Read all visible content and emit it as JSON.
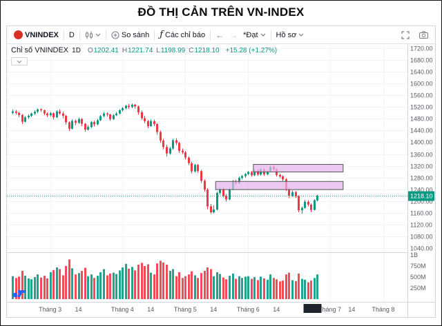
{
  "title": "ĐỒ THỊ CẢN TRÊN VN-INDEX",
  "toolbar": {
    "symbol": "VNINDEX",
    "interval": "D",
    "compare_label": "So sánh",
    "indicators_label": "Các chỉ báo",
    "layout_name": "*Đạt",
    "profile_label": "Hồ sơ"
  },
  "icons": {
    "fx": "ƒ",
    "undo": "←",
    "redo": "→"
  },
  "legend": {
    "series_title": "Chỉ số VNINDEX",
    "interval": "1D",
    "o_label": "O",
    "o": "1202.41",
    "h_label": "H",
    "h": "1221.74",
    "l_label": "L",
    "l": "1198.99",
    "c_label": "C",
    "c": "1218.10",
    "change": "+15.28 (+1.27%)"
  },
  "chart_data": {
    "type": "candlestick",
    "symbol": "VNINDEX",
    "interval": "1D",
    "ylim": [
      1040,
      1720
    ],
    "price_ticks": [
      1720,
      1680,
      1640,
      1600,
      1560,
      1520,
      1480,
      1440,
      1400,
      1360,
      1320,
      1280,
      1240,
      1200,
      1160,
      1120,
      1080,
      1040
    ],
    "volume_ticks": [
      {
        "label": "1B",
        "millions": 1000
      },
      {
        "label": "750M",
        "millions": 750
      },
      {
        "label": "500M",
        "millions": 500
      },
      {
        "label": "250M",
        "millions": 250
      }
    ],
    "x_labels": [
      {
        "label": "Tháng 3",
        "index": 12
      },
      {
        "label": "14",
        "index": 21
      },
      {
        "label": "Tháng 4",
        "index": 35
      },
      {
        "label": "14",
        "index": 44
      },
      {
        "label": "Tháng 5",
        "index": 55
      },
      {
        "label": "14",
        "index": 64
      },
      {
        "label": "Tháng 6",
        "index": 75
      },
      {
        "label": "14",
        "index": 84
      },
      {
        "label": "Tháng 7",
        "index": 101
      },
      {
        "label": "14",
        "index": 108
      },
      {
        "label": "Tháng 8",
        "index": 118
      }
    ],
    "last_price": 1218.1,
    "last_price_label": "1218.10",
    "date_marker": {
      "index": 95.5,
      "width": 26
    },
    "zones": [
      {
        "top": 1326,
        "bottom": 1298,
        "start_index": 77
      },
      {
        "top": 1268,
        "bottom": 1238,
        "start_index": 65
      }
    ],
    "colors": {
      "up": "#089981",
      "down": "#f23645",
      "zone_fill": "#e5b4ea",
      "zone_border": "#555555",
      "grid": "#f0f3fa",
      "axis_text": "#555a63",
      "axis_line": "#d1d4dc",
      "date_marker": "#1e222d"
    },
    "candles": [
      [
        1500,
        1512,
        1496,
        1505,
        520
      ],
      [
        1505,
        1510,
        1494,
        1500,
        480
      ],
      [
        1500,
        1504,
        1485,
        1493,
        510
      ],
      [
        1493,
        1496,
        1462,
        1470,
        640
      ],
      [
        1470,
        1489,
        1468,
        1485,
        530
      ],
      [
        1485,
        1495,
        1480,
        1490,
        470
      ],
      [
        1490,
        1501,
        1486,
        1498,
        450
      ],
      [
        1498,
        1508,
        1493,
        1504,
        500
      ],
      [
        1504,
        1515,
        1500,
        1512,
        560
      ],
      [
        1512,
        1516,
        1503,
        1509,
        490
      ],
      [
        1509,
        1511,
        1492,
        1498,
        530
      ],
      [
        1498,
        1502,
        1486,
        1492,
        470
      ],
      [
        1492,
        1503,
        1488,
        1499,
        610
      ],
      [
        1499,
        1502,
        1478,
        1485,
        660
      ],
      [
        1485,
        1509,
        1483,
        1505,
        720
      ],
      [
        1505,
        1512,
        1494,
        1498,
        680
      ],
      [
        1498,
        1504,
        1482,
        1490,
        540
      ],
      [
        1490,
        1493,
        1460,
        1468,
        750
      ],
      [
        1468,
        1472,
        1438,
        1446,
        900
      ],
      [
        1446,
        1478,
        1444,
        1473,
        700
      ],
      [
        1473,
        1477,
        1458,
        1466,
        560
      ],
      [
        1466,
        1484,
        1463,
        1479,
        590
      ],
      [
        1479,
        1482,
        1455,
        1463,
        640
      ],
      [
        1463,
        1466,
        1436,
        1443,
        710
      ],
      [
        1443,
        1458,
        1440,
        1452,
        520
      ],
      [
        1452,
        1473,
        1449,
        1469,
        560
      ],
      [
        1469,
        1474,
        1454,
        1461,
        480
      ],
      [
        1461,
        1480,
        1458,
        1475,
        530
      ],
      [
        1475,
        1493,
        1472,
        1489,
        610
      ],
      [
        1489,
        1503,
        1485,
        1498,
        680
      ],
      [
        1498,
        1502,
        1488,
        1495,
        540
      ],
      [
        1495,
        1497,
        1473,
        1479,
        580
      ],
      [
        1479,
        1496,
        1476,
        1492,
        600
      ],
      [
        1492,
        1503,
        1489,
        1498,
        570
      ],
      [
        1498,
        1513,
        1495,
        1509,
        650
      ],
      [
        1509,
        1520,
        1505,
        1516,
        720
      ],
      [
        1516,
        1528,
        1512,
        1524,
        800
      ],
      [
        1524,
        1530,
        1514,
        1520,
        690
      ],
      [
        1520,
        1532,
        1516,
        1528,
        730
      ],
      [
        1528,
        1530,
        1515,
        1522,
        650
      ],
      [
        1522,
        1525,
        1494,
        1502,
        780
      ],
      [
        1502,
        1508,
        1476,
        1482,
        820
      ],
      [
        1482,
        1490,
        1465,
        1472,
        750
      ],
      [
        1472,
        1476,
        1448,
        1455,
        790
      ],
      [
        1455,
        1478,
        1452,
        1472,
        600
      ],
      [
        1472,
        1477,
        1455,
        1462,
        560
      ],
      [
        1462,
        1465,
        1426,
        1435,
        810
      ],
      [
        1435,
        1440,
        1398,
        1406,
        870
      ],
      [
        1406,
        1412,
        1376,
        1384,
        830
      ],
      [
        1384,
        1392,
        1352,
        1362,
        780
      ],
      [
        1362,
        1385,
        1358,
        1379,
        640
      ],
      [
        1379,
        1412,
        1375,
        1407,
        680
      ],
      [
        1407,
        1414,
        1390,
        1398,
        520
      ],
      [
        1398,
        1402,
        1364,
        1371,
        610
      ],
      [
        1371,
        1379,
        1360,
        1366,
        480
      ],
      [
        1366,
        1370,
        1342,
        1348,
        520
      ],
      [
        1348,
        1352,
        1322,
        1329,
        560
      ],
      [
        1329,
        1334,
        1294,
        1301,
        630
      ],
      [
        1301,
        1327,
        1298,
        1323,
        540
      ],
      [
        1323,
        1326,
        1296,
        1302,
        480
      ],
      [
        1302,
        1306,
        1262,
        1269,
        590
      ],
      [
        1269,
        1274,
        1232,
        1239,
        640
      ],
      [
        1239,
        1244,
        1172,
        1182,
        720
      ],
      [
        1182,
        1190,
        1156,
        1162,
        680
      ],
      [
        1162,
        1186,
        1158,
        1171,
        520
      ],
      [
        1171,
        1232,
        1168,
        1228,
        610
      ],
      [
        1228,
        1246,
        1222,
        1241,
        570
      ],
      [
        1241,
        1245,
        1212,
        1218,
        490
      ],
      [
        1218,
        1224,
        1198,
        1206,
        450
      ],
      [
        1206,
        1244,
        1203,
        1240,
        530
      ],
      [
        1240,
        1272,
        1237,
        1268,
        580
      ],
      [
        1268,
        1273,
        1254,
        1261,
        460
      ],
      [
        1261,
        1283,
        1258,
        1279,
        520
      ],
      [
        1279,
        1289,
        1274,
        1285,
        480
      ],
      [
        1285,
        1296,
        1280,
        1292,
        510
      ],
      [
        1292,
        1302,
        1288,
        1299,
        520
      ],
      [
        1299,
        1303,
        1283,
        1288,
        460
      ],
      [
        1288,
        1308,
        1285,
        1304,
        500
      ],
      [
        1304,
        1309,
        1286,
        1290,
        430
      ],
      [
        1290,
        1312,
        1287,
        1308,
        510
      ],
      [
        1308,
        1313,
        1286,
        1291,
        470
      ],
      [
        1291,
        1305,
        1288,
        1301,
        440
      ],
      [
        1301,
        1320,
        1298,
        1316,
        560
      ],
      [
        1316,
        1321,
        1303,
        1308,
        480
      ],
      [
        1308,
        1312,
        1284,
        1289,
        450
      ],
      [
        1289,
        1293,
        1278,
        1284,
        400
      ],
      [
        1284,
        1288,
        1268,
        1274,
        420
      ],
      [
        1274,
        1278,
        1234,
        1240,
        560
      ],
      [
        1240,
        1246,
        1210,
        1218,
        600
      ],
      [
        1218,
        1236,
        1214,
        1230,
        430
      ],
      [
        1230,
        1234,
        1211,
        1217,
        410
      ],
      [
        1217,
        1220,
        1162,
        1169,
        580
      ],
      [
        1169,
        1182,
        1157,
        1177,
        460
      ],
      [
        1177,
        1204,
        1174,
        1198,
        440
      ],
      [
        1198,
        1202,
        1182,
        1188,
        380
      ],
      [
        1188,
        1192,
        1162,
        1170,
        420
      ],
      [
        1170,
        1206,
        1168,
        1202.8,
        480
      ],
      [
        1202.41,
        1221.74,
        1198.99,
        1218.1,
        560
      ]
    ]
  }
}
